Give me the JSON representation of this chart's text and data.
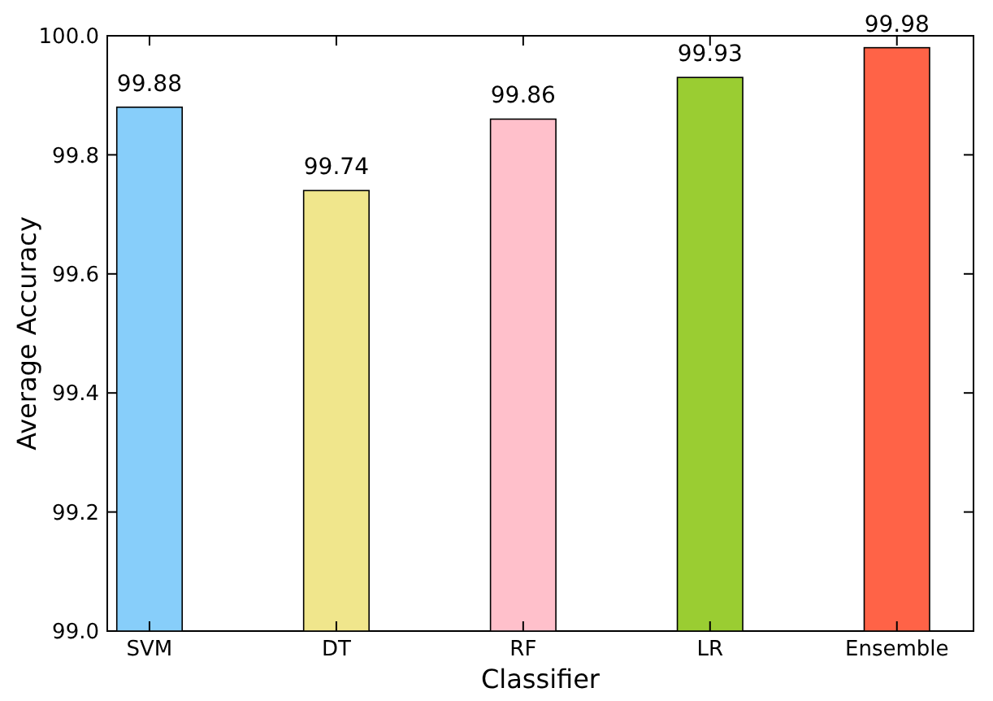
{
  "chart_data": {
    "type": "bar",
    "xlabel": "Classifier",
    "ylabel": "Average Accuracy",
    "categories": [
      "SVM",
      "DT",
      "RF",
      "LR",
      "Ensemble"
    ],
    "values": [
      99.88,
      99.74,
      99.86,
      99.93,
      99.98
    ],
    "colors": [
      "#87cefa",
      "#f0e68c",
      "#ffc0cb",
      "#9acd32",
      "#ff6347"
    ],
    "ylim": [
      99.0,
      100.0
    ],
    "yticks": [
      {
        "value": 99.0,
        "label": "99.0"
      },
      {
        "value": 99.2,
        "label": "99.2"
      },
      {
        "value": 99.4,
        "label": "99.4"
      },
      {
        "value": 99.6,
        "label": "99.6"
      },
      {
        "value": 99.8,
        "label": "99.8"
      },
      {
        "value": 100.0,
        "label": "100.0"
      }
    ],
    "data_labels": true,
    "grid": false
  }
}
